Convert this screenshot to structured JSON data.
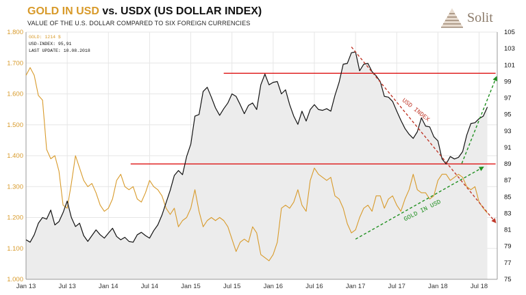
{
  "header": {
    "title_gold": "GOLD IN USD",
    "title_vs": " vs. ",
    "title_usdx": "USDX (US DOLLAR INDEX)",
    "subtitle": "VALUE OF THE U.S. DOLLAR COMPARED TO SIX FOREIGN CURRENCIES"
  },
  "logo": {
    "text": "Solit",
    "color": "#8c7b6a"
  },
  "legend": {
    "gold": "GOLD: 1214 $",
    "usd": "USD-INDEX: 95,91",
    "update": "LAST UPDATE: 10.08.2018"
  },
  "chart_data": {
    "type": "line",
    "x_ticks": [
      "Jan 13",
      "Jul 13",
      "Jan 14",
      "Jul 14",
      "Jan 15",
      "Jul 15",
      "Jan 16",
      "Jul 16",
      "Jan 17",
      "Jul 17",
      "Jan 18",
      "Jul 18"
    ],
    "left_axis": {
      "min": 1000,
      "max": 1800,
      "ticks": [
        "1.000",
        "1.100",
        "1.200",
        "1.300",
        "1.400",
        "1.500",
        "1.600",
        "1.700",
        "1.800"
      ],
      "color": "#d89a2a"
    },
    "right_axis": {
      "min": 75,
      "max": 105,
      "ticks": [
        "75",
        "77",
        "79",
        "81",
        "83",
        "85",
        "87",
        "89",
        "91",
        "93",
        "95",
        "97",
        "99",
        "101",
        "103",
        "105"
      ],
      "color": "#111111"
    },
    "colors": {
      "gold": "#d89a2a",
      "usd": "#111111",
      "fill": "#ececec",
      "hline": "#dd1111",
      "usd_trend": "#c0392b",
      "gold_trend": "#1f8f1f"
    },
    "series": [
      {
        "key": "gold",
        "axis": "left",
        "points": [
          [
            2013.0,
            1660
          ],
          [
            2013.05,
            1685
          ],
          [
            2013.1,
            1660
          ],
          [
            2013.15,
            1595
          ],
          [
            2013.2,
            1580
          ],
          [
            2013.25,
            1420
          ],
          [
            2013.3,
            1390
          ],
          [
            2013.35,
            1400
          ],
          [
            2013.4,
            1350
          ],
          [
            2013.45,
            1240
          ],
          [
            2013.5,
            1230
          ],
          [
            2013.55,
            1310
          ],
          [
            2013.6,
            1400
          ],
          [
            2013.65,
            1360
          ],
          [
            2013.7,
            1320
          ],
          [
            2013.75,
            1300
          ],
          [
            2013.8,
            1310
          ],
          [
            2013.85,
            1280
          ],
          [
            2013.9,
            1240
          ],
          [
            2013.95,
            1220
          ],
          [
            2014.0,
            1230
          ],
          [
            2014.05,
            1260
          ],
          [
            2014.1,
            1320
          ],
          [
            2014.15,
            1340
          ],
          [
            2014.2,
            1300
          ],
          [
            2014.25,
            1290
          ],
          [
            2014.3,
            1300
          ],
          [
            2014.35,
            1260
          ],
          [
            2014.4,
            1250
          ],
          [
            2014.45,
            1280
          ],
          [
            2014.5,
            1320
          ],
          [
            2014.55,
            1300
          ],
          [
            2014.6,
            1290
          ],
          [
            2014.65,
            1270
          ],
          [
            2014.7,
            1230
          ],
          [
            2014.75,
            1210
          ],
          [
            2014.8,
            1230
          ],
          [
            2014.85,
            1170
          ],
          [
            2014.9,
            1190
          ],
          [
            2014.95,
            1200
          ],
          [
            2015.0,
            1230
          ],
          [
            2015.05,
            1290
          ],
          [
            2015.1,
            1220
          ],
          [
            2015.15,
            1170
          ],
          [
            2015.2,
            1190
          ],
          [
            2015.25,
            1200
          ],
          [
            2015.3,
            1190
          ],
          [
            2015.35,
            1200
          ],
          [
            2015.4,
            1190
          ],
          [
            2015.45,
            1170
          ],
          [
            2015.5,
            1130
          ],
          [
            2015.55,
            1090
          ],
          [
            2015.6,
            1120
          ],
          [
            2015.65,
            1130
          ],
          [
            2015.7,
            1120
          ],
          [
            2015.75,
            1170
          ],
          [
            2015.8,
            1150
          ],
          [
            2015.85,
            1080
          ],
          [
            2015.9,
            1070
          ],
          [
            2015.95,
            1060
          ],
          [
            2016.0,
            1080
          ],
          [
            2016.05,
            1120
          ],
          [
            2016.1,
            1230
          ],
          [
            2016.15,
            1240
          ],
          [
            2016.2,
            1230
          ],
          [
            2016.25,
            1250
          ],
          [
            2016.3,
            1290
          ],
          [
            2016.35,
            1240
          ],
          [
            2016.4,
            1220
          ],
          [
            2016.45,
            1320
          ],
          [
            2016.5,
            1360
          ],
          [
            2016.55,
            1340
          ],
          [
            2016.6,
            1330
          ],
          [
            2016.65,
            1320
          ],
          [
            2016.7,
            1330
          ],
          [
            2016.75,
            1270
          ],
          [
            2016.8,
            1260
          ],
          [
            2016.85,
            1230
          ],
          [
            2016.9,
            1180
          ],
          [
            2016.95,
            1150
          ],
          [
            2017.0,
            1160
          ],
          [
            2017.05,
            1200
          ],
          [
            2017.1,
            1230
          ],
          [
            2017.15,
            1240
          ],
          [
            2017.2,
            1220
          ],
          [
            2017.25,
            1270
          ],
          [
            2017.3,
            1270
          ],
          [
            2017.35,
            1230
          ],
          [
            2017.4,
            1260
          ],
          [
            2017.45,
            1270
          ],
          [
            2017.5,
            1240
          ],
          [
            2017.55,
            1220
          ],
          [
            2017.6,
            1260
          ],
          [
            2017.65,
            1290
          ],
          [
            2017.7,
            1340
          ],
          [
            2017.75,
            1290
          ],
          [
            2017.8,
            1280
          ],
          [
            2017.85,
            1280
          ],
          [
            2017.9,
            1260
          ],
          [
            2017.95,
            1270
          ],
          [
            2018.0,
            1320
          ],
          [
            2018.05,
            1340
          ],
          [
            2018.1,
            1340
          ],
          [
            2018.15,
            1320
          ],
          [
            2018.2,
            1330
          ],
          [
            2018.25,
            1340
          ],
          [
            2018.3,
            1330
          ],
          [
            2018.35,
            1300
          ],
          [
            2018.4,
            1290
          ],
          [
            2018.45,
            1300
          ],
          [
            2018.5,
            1250
          ],
          [
            2018.55,
            1230
          ],
          [
            2018.6,
            1214
          ]
        ]
      },
      {
        "key": "usd",
        "axis": "right",
        "points": [
          [
            2013.0,
            79.8
          ],
          [
            2013.05,
            79.5
          ],
          [
            2013.1,
            80.4
          ],
          [
            2013.15,
            81.8
          ],
          [
            2013.2,
            82.5
          ],
          [
            2013.25,
            82.3
          ],
          [
            2013.3,
            83.4
          ],
          [
            2013.35,
            81.6
          ],
          [
            2013.4,
            82.0
          ],
          [
            2013.45,
            83.1
          ],
          [
            2013.5,
            84.5
          ],
          [
            2013.55,
            82.5
          ],
          [
            2013.6,
            81.4
          ],
          [
            2013.65,
            81.8
          ],
          [
            2013.7,
            80.3
          ],
          [
            2013.75,
            79.6
          ],
          [
            2013.8,
            80.3
          ],
          [
            2013.85,
            81.0
          ],
          [
            2013.9,
            80.4
          ],
          [
            2013.95,
            80.0
          ],
          [
            2014.0,
            80.6
          ],
          [
            2014.05,
            81.2
          ],
          [
            2014.1,
            80.2
          ],
          [
            2014.15,
            79.8
          ],
          [
            2014.2,
            80.1
          ],
          [
            2014.25,
            79.6
          ],
          [
            2014.3,
            79.5
          ],
          [
            2014.35,
            80.4
          ],
          [
            2014.4,
            80.7
          ],
          [
            2014.45,
            80.3
          ],
          [
            2014.5,
            80.0
          ],
          [
            2014.55,
            80.9
          ],
          [
            2014.6,
            81.6
          ],
          [
            2014.65,
            82.8
          ],
          [
            2014.7,
            84.3
          ],
          [
            2014.75,
            85.8
          ],
          [
            2014.8,
            87.6
          ],
          [
            2014.85,
            88.2
          ],
          [
            2014.9,
            87.7
          ],
          [
            2014.95,
            89.9
          ],
          [
            2015.0,
            91.4
          ],
          [
            2015.05,
            94.8
          ],
          [
            2015.1,
            95.0
          ],
          [
            2015.15,
            97.8
          ],
          [
            2015.2,
            98.3
          ],
          [
            2015.25,
            97.1
          ],
          [
            2015.3,
            95.8
          ],
          [
            2015.35,
            94.9
          ],
          [
            2015.4,
            95.7
          ],
          [
            2015.45,
            96.4
          ],
          [
            2015.5,
            97.5
          ],
          [
            2015.55,
            97.2
          ],
          [
            2015.6,
            96.2
          ],
          [
            2015.65,
            95.1
          ],
          [
            2015.7,
            96.1
          ],
          [
            2015.75,
            96.4
          ],
          [
            2015.8,
            95.6
          ],
          [
            2015.85,
            98.6
          ],
          [
            2015.9,
            99.9
          ],
          [
            2015.95,
            98.6
          ],
          [
            2016.0,
            98.9
          ],
          [
            2016.05,
            99.0
          ],
          [
            2016.1,
            97.5
          ],
          [
            2016.15,
            98.0
          ],
          [
            2016.2,
            96.2
          ],
          [
            2016.25,
            94.8
          ],
          [
            2016.3,
            93.8
          ],
          [
            2016.35,
            95.4
          ],
          [
            2016.4,
            94.2
          ],
          [
            2016.45,
            95.6
          ],
          [
            2016.5,
            96.2
          ],
          [
            2016.55,
            95.6
          ],
          [
            2016.6,
            95.5
          ],
          [
            2016.65,
            95.7
          ],
          [
            2016.7,
            95.4
          ],
          [
            2016.75,
            97.3
          ],
          [
            2016.8,
            98.9
          ],
          [
            2016.85,
            101.1
          ],
          [
            2016.9,
            101.2
          ],
          [
            2016.95,
            102.5
          ],
          [
            2017.0,
            102.6
          ],
          [
            2017.05,
            100.3
          ],
          [
            2017.1,
            101.1
          ],
          [
            2017.15,
            101.2
          ],
          [
            2017.2,
            100.2
          ],
          [
            2017.25,
            99.7
          ],
          [
            2017.3,
            99.0
          ],
          [
            2017.35,
            97.2
          ],
          [
            2017.4,
            97.1
          ],
          [
            2017.45,
            96.6
          ],
          [
            2017.5,
            95.4
          ],
          [
            2017.55,
            94.3
          ],
          [
            2017.6,
            93.3
          ],
          [
            2017.65,
            92.6
          ],
          [
            2017.7,
            92.1
          ],
          [
            2017.75,
            92.9
          ],
          [
            2017.8,
            94.6
          ],
          [
            2017.85,
            93.6
          ],
          [
            2017.9,
            93.5
          ],
          [
            2017.95,
            92.3
          ],
          [
            2018.0,
            91.8
          ],
          [
            2018.05,
            89.6
          ],
          [
            2018.1,
            89.0
          ],
          [
            2018.15,
            89.9
          ],
          [
            2018.2,
            89.6
          ],
          [
            2018.25,
            89.8
          ],
          [
            2018.3,
            90.5
          ],
          [
            2018.35,
            92.5
          ],
          [
            2018.4,
            93.9
          ],
          [
            2018.45,
            94.0
          ],
          [
            2018.5,
            94.5
          ],
          [
            2018.55,
            94.8
          ],
          [
            2018.6,
            95.9
          ]
        ]
      }
    ],
    "hlines": [
      {
        "axis": "right",
        "value": 100,
        "x_from": 2015.4,
        "x_to": 2018.7
      },
      {
        "axis": "right",
        "value": 89,
        "x_from": 2014.27,
        "x_to": 2018.7
      }
    ],
    "annotations": [
      {
        "text": "USD INDEX",
        "color": "#c0392b",
        "from": [
          2016.95,
          103.2
        ],
        "to": [
          2018.7,
          81.9
        ],
        "axis": "right",
        "label_at": [
          2017.72,
          95.4
        ],
        "angle": 38.5
      },
      {
        "text": "GOLD IN USD",
        "color": "#1f8f1f",
        "from": [
          2017.0,
          1130
        ],
        "to": [
          2018.55,
          1363
        ],
        "axis": "left",
        "label_at": [
          2017.82,
          1218
        ],
        "angle": -27
      },
      {
        "text": "",
        "color": "#1f8f1f",
        "from": [
          2018.29,
          1375
        ],
        "to": [
          2018.71,
          1655
        ],
        "axis": "left"
      }
    ]
  }
}
